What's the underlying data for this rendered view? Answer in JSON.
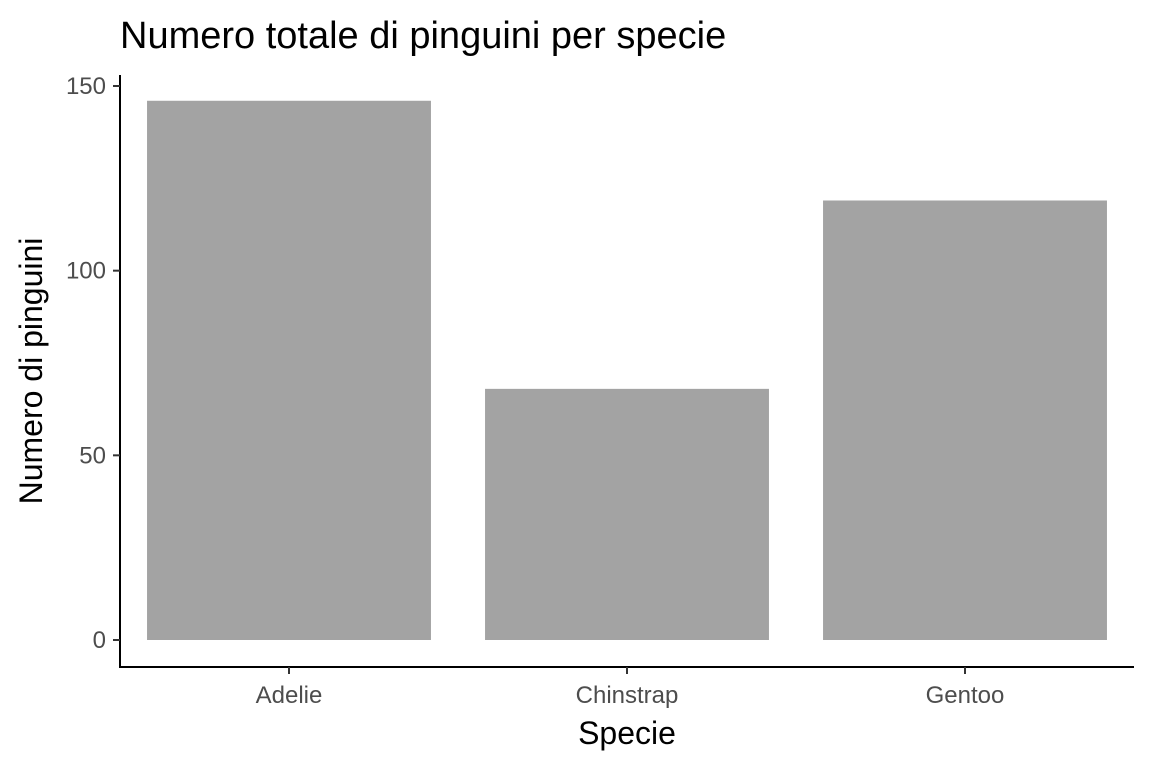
{
  "chart_data": {
    "type": "bar",
    "title": "Numero totale di pinguini per specie",
    "xlabel": "Specie",
    "ylabel": "Numero di pinguini",
    "categories": [
      "Adelie",
      "Chinstrap",
      "Gentoo"
    ],
    "values": [
      146,
      68,
      119
    ],
    "ylim": [
      0,
      152
    ],
    "yticks": [
      0,
      50,
      100,
      150
    ],
    "grid": false,
    "legend": "none",
    "bar_color": "#a3a3a3"
  }
}
